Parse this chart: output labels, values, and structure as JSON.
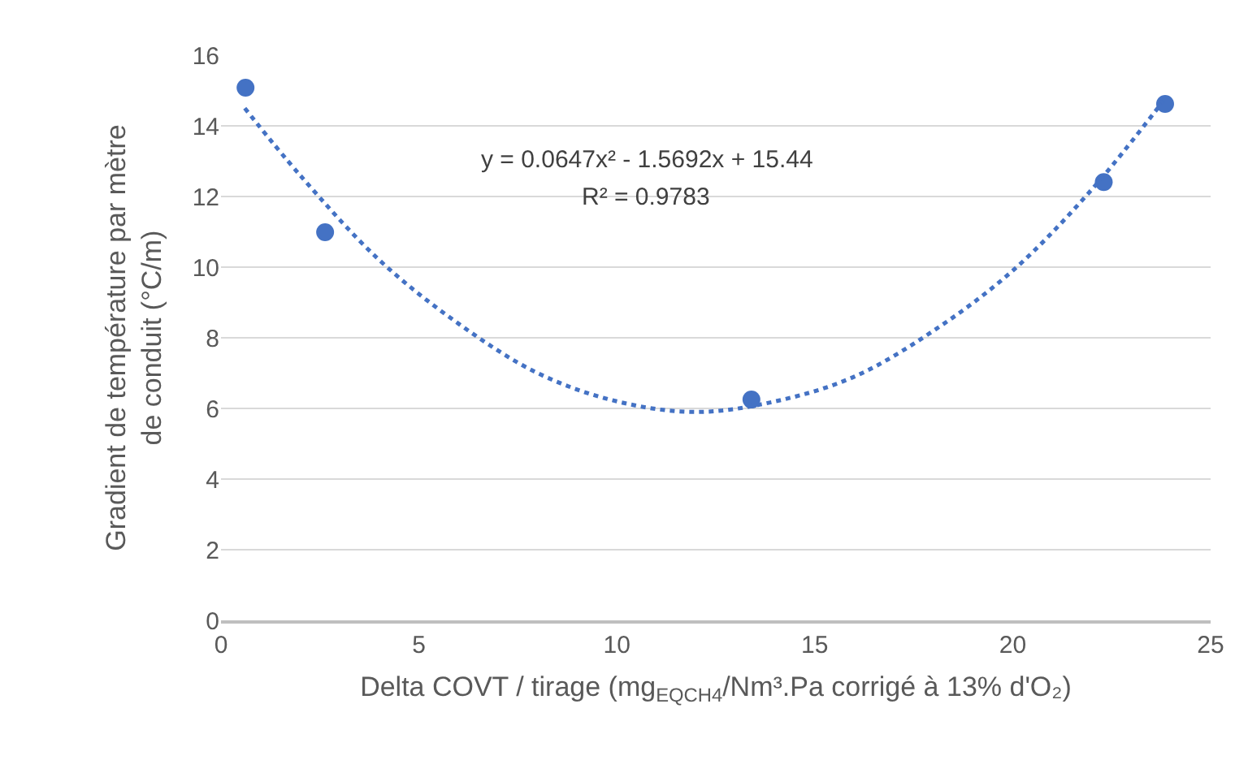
{
  "chart_data": {
    "type": "scatter",
    "xlabel": "Delta COVT / tirage (mg$_{EQCH4}$/Nm³.Pa corrigé à 13% d'O₂)",
    "ylabel": "Gradient de température par mètre de conduit (°C/m)",
    "annotations": [
      "y = 0.0647x² - 1.5692x + 15.44",
      "R² = 0.9783"
    ],
    "series": [
      {
        "color": "#4472c4",
        "marker": "circle",
        "x": [
          0.62,
          2.63,
          13.4,
          22.3,
          23.85
        ],
        "values": [
          15.08,
          10.99,
          6.25,
          12.41,
          14.62
        ]
      },
      {
        "type": "line",
        "color": "#4472c4",
        "line_style": "dotted",
        "x": [
          0.6,
          2,
          4,
          6,
          8,
          10,
          12,
          14,
          16,
          18,
          20,
          22,
          23.8
        ],
        "values": [
          14.5,
          12.6,
          10.2,
          8.4,
          7.0,
          6.2,
          5.9,
          6.2,
          6.9,
          8.2,
          9.9,
          12.2,
          14.7
        ]
      }
    ],
    "xlim": [
      0,
      25
    ],
    "xticks": [
      0,
      5,
      10,
      15,
      20,
      25
    ],
    "ylim": [
      0,
      16
    ],
    "yticks": [
      0,
      2,
      4,
      6,
      8,
      10,
      12,
      14,
      16
    ],
    "grid": "y",
    "legend": false
  }
}
